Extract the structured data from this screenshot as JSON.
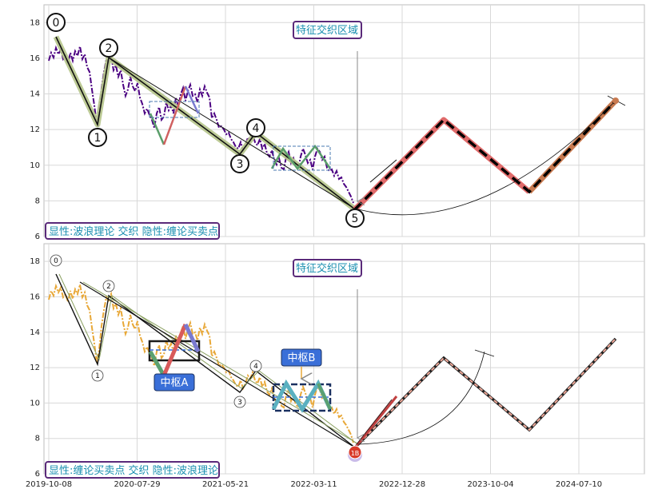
{
  "chart_data": [
    {
      "type": "line",
      "panel": "top",
      "ylim": [
        6,
        19
      ],
      "y_ticks": [
        6,
        8,
        10,
        12,
        14,
        16,
        18
      ],
      "annotation_title": "特征交织区域",
      "legend_text": "显性:波浪理论 交织 隐性:缠论买卖点",
      "wave_labels": [
        "0",
        "1",
        "2",
        "3",
        "4",
        "5"
      ],
      "wave_points": [
        {
          "label": "0",
          "t": 0.05,
          "y": 17.3
        },
        {
          "label": "1",
          "t": 0.3,
          "y": 12.2
        },
        {
          "label": "2",
          "t": 0.36,
          "y": 16.2
        },
        {
          "label": "3",
          "t": 1.2,
          "y": 10.7
        },
        {
          "label": "4",
          "t": 1.3,
          "y": 11.7
        },
        {
          "label": "5",
          "t": 1.65,
          "y": 7.4
        }
      ],
      "projection": [
        {
          "t": 1.65,
          "y": 7.4
        },
        {
          "t": 2.02,
          "y": 12.6
        },
        {
          "t": 2.45,
          "y": 8.5
        },
        {
          "t": 2.92,
          "y": 13.8
        }
      ],
      "colors": {
        "price": "#4b0082",
        "wave": "#111111",
        "wave_halo": "#b5c48a",
        "proj_fill": "#e05c5c",
        "proj_tail": "#c87a50"
      }
    },
    {
      "type": "line",
      "panel": "bottom",
      "ylim": [
        6,
        19
      ],
      "y_ticks": [
        6,
        8,
        10,
        12,
        14,
        16,
        18
      ],
      "annotation_title": "特征交织区域",
      "legend_text": "显性:缠论买卖点 交织 隐性:波浪理论",
      "wave_labels": [
        "0",
        "1",
        "2",
        "3",
        "4"
      ],
      "buy_point_label": "1B",
      "zhongshu": [
        {
          "label": "中枢A",
          "y_low": 12.4,
          "y_high": 13.6
        },
        {
          "label": "中枢B",
          "y_low": 9.6,
          "y_high": 11.1
        }
      ],
      "x_ticks": [
        "2019-10-08",
        "2020-07-29",
        "2021-05-21",
        "2022-03-11",
        "2022-12-28",
        "2023-10-04",
        "2024-07-10"
      ],
      "colors": {
        "price": "#e8a838",
        "proj": "#e8a090",
        "zs_box": "#1a3060",
        "zs_badge": "#3a6fd8"
      }
    }
  ]
}
